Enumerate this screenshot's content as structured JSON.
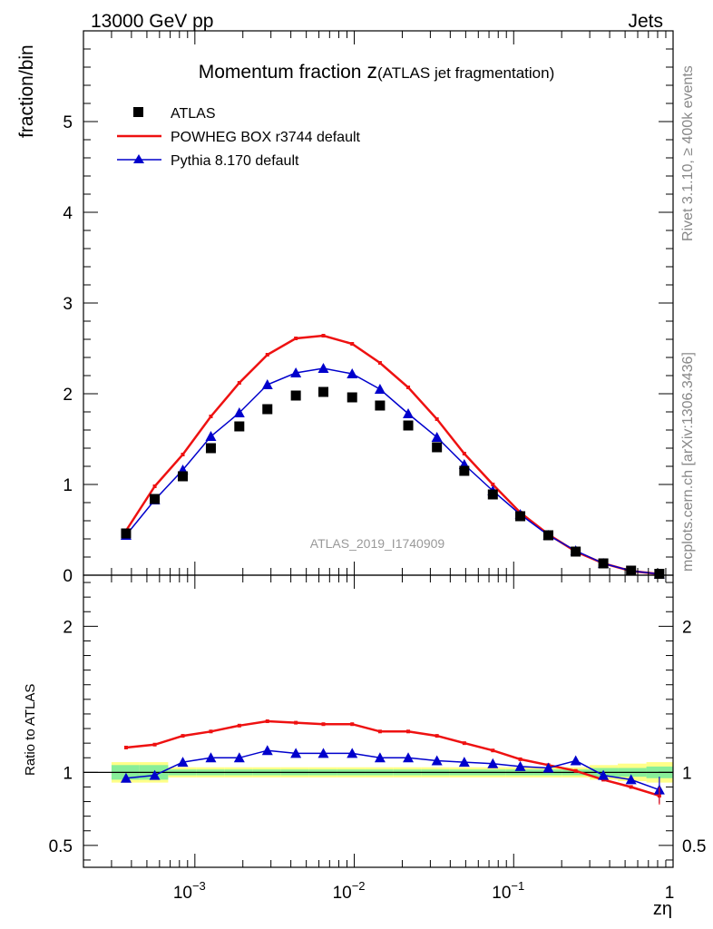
{
  "header": {
    "energy_label": "13000 GeV pp",
    "process_label": "Jets",
    "side_label_rivet": "Rivet 3.1.10, ≥ 400k events",
    "side_label_mcplots": "mcplots.cern.ch [arXiv:1306.3436]",
    "analysis_id": "ATLAS_2019_I1740909"
  },
  "colors": {
    "data": "#000000",
    "powheg": "#ee1111",
    "pythia": "#0000cc",
    "band_yellow": "#ffff88",
    "band_green": "#88ee99"
  },
  "chart_data": [
    {
      "type": "scatter",
      "panel": "main",
      "title": "Momentum fraction",
      "title_symbol": "z",
      "title_note": "(ATLAS jet fragmentation)",
      "ylabel": "fraction/bin",
      "xscale": "log",
      "xlim": [
        0.0002,
        1.0
      ],
      "ylim": [
        0,
        6
      ],
      "yticks": [
        0,
        1,
        2,
        3,
        4,
        5
      ],
      "ytick_labels": [
        "0",
        "1",
        "2",
        "3",
        "4",
        "5"
      ],
      "x": [
        0.00037,
        0.00056,
        0.00084,
        0.00126,
        0.0019,
        0.00285,
        0.0043,
        0.0064,
        0.0097,
        0.0145,
        0.0218,
        0.033,
        0.049,
        0.074,
        0.11,
        0.165,
        0.245,
        0.365,
        0.545,
        0.82
      ],
      "series": [
        {
          "name": "ATLAS",
          "marker": "square",
          "values": [
            0.46,
            0.84,
            1.09,
            1.4,
            1.64,
            1.83,
            1.98,
            2.02,
            1.96,
            1.87,
            1.65,
            1.41,
            1.15,
            0.89,
            0.65,
            0.44,
            0.26,
            0.13,
            0.05,
            0.015
          ]
        },
        {
          "name": "POWHEG BOX r3744 default",
          "marker": "line",
          "values": [
            0.49,
            0.98,
            1.33,
            1.75,
            2.12,
            2.43,
            2.61,
            2.64,
            2.55,
            2.34,
            2.07,
            1.72,
            1.34,
            1.0,
            0.69,
            0.45,
            0.26,
            0.13,
            0.046,
            0.013
          ]
        },
        {
          "name": "Pythia 8.170 default",
          "marker": "triangle",
          "values": [
            0.44,
            0.83,
            1.16,
            1.53,
            1.79,
            2.1,
            2.23,
            2.28,
            2.22,
            2.05,
            1.78,
            1.52,
            1.22,
            0.93,
            0.67,
            0.44,
            0.27,
            0.13,
            0.048,
            0.013
          ]
        }
      ]
    },
    {
      "type": "line",
      "panel": "ratio",
      "ylabel": "Ratio to ATLAS",
      "xlabel": "zη",
      "xscale": "log",
      "xlim": [
        0.0002,
        1.0
      ],
      "ylim": [
        0.35,
        2.35
      ],
      "yticks": [
        0.5,
        1,
        2
      ],
      "ytick_labels": [
        "0.5",
        "1",
        "2"
      ],
      "xticks": [
        0.001,
        0.01,
        0.1,
        1
      ],
      "xtick_labels": [
        "10",
        "10",
        "10",
        "1"
      ],
      "xtick_exponents": [
        "−3",
        "−2",
        "−1",
        ""
      ],
      "x": [
        0.00037,
        0.00056,
        0.00084,
        0.00126,
        0.0019,
        0.00285,
        0.0043,
        0.0064,
        0.0097,
        0.0145,
        0.0218,
        0.033,
        0.049,
        0.074,
        0.11,
        0.165,
        0.245,
        0.365,
        0.545,
        0.82
      ],
      "series": [
        {
          "name": "POWHEG BOX r3744 default",
          "values": [
            1.17,
            1.19,
            1.25,
            1.28,
            1.32,
            1.35,
            1.34,
            1.33,
            1.33,
            1.28,
            1.28,
            1.25,
            1.2,
            1.15,
            1.09,
            1.05,
            1.01,
            0.95,
            0.9,
            0.84
          ]
        },
        {
          "name": "Pythia 8.170 default",
          "values": [
            0.96,
            0.98,
            1.07,
            1.1,
            1.1,
            1.15,
            1.13,
            1.13,
            1.13,
            1.1,
            1.1,
            1.08,
            1.07,
            1.06,
            1.04,
            1.03,
            1.08,
            0.98,
            0.95,
            0.88
          ]
        }
      ],
      "uncertainty_band_green": [
        0.05,
        0.05,
        0.02,
        0.02,
        0.02,
        0.02,
        0.02,
        0.02,
        0.02,
        0.02,
        0.02,
        0.02,
        0.02,
        0.02,
        0.02,
        0.02,
        0.02,
        0.03,
        0.03,
        0.04
      ],
      "uncertainty_band_yellow": [
        0.07,
        0.07,
        0.035,
        0.035,
        0.035,
        0.035,
        0.035,
        0.035,
        0.035,
        0.035,
        0.035,
        0.035,
        0.035,
        0.035,
        0.035,
        0.035,
        0.035,
        0.05,
        0.06,
        0.07
      ]
    }
  ],
  "bin_edges": [
    0.0003,
    0.00045,
    0.00068,
    0.00102,
    0.00154,
    0.0023,
    0.00345,
    0.0052,
    0.0078,
    0.0117,
    0.0175,
    0.0263,
    0.0395,
    0.059,
    0.089,
    0.133,
    0.2,
    0.3,
    0.45,
    0.68,
    1.0
  ]
}
